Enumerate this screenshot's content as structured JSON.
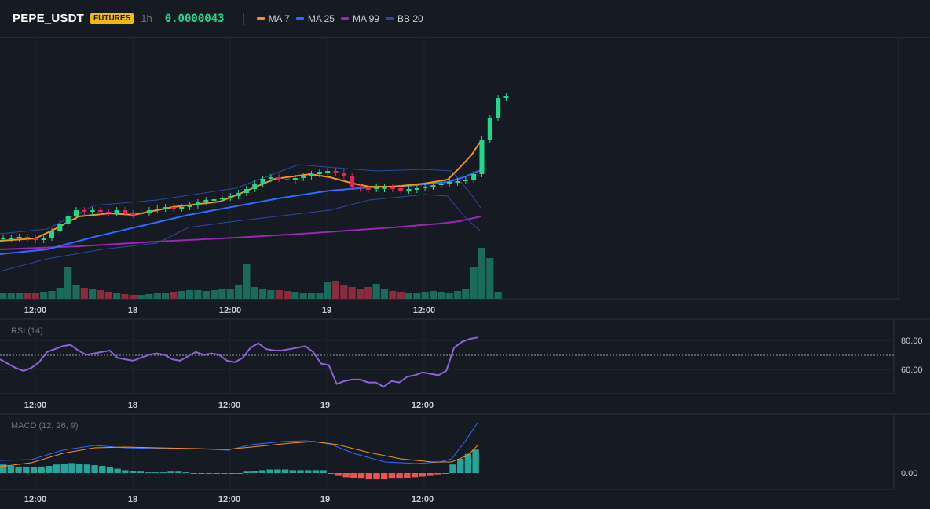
{
  "header": {
    "symbol": "PEPE_USDT",
    "badge": "FUTURES",
    "interval": "1h",
    "price": "0.0000043"
  },
  "legend": [
    {
      "label": "MA 7",
      "color": "#f7931a"
    },
    {
      "label": "MA 25",
      "color": "#2f6bff"
    },
    {
      "label": "MA 99",
      "color": "#9c27b0"
    },
    {
      "label": "BB 20",
      "color": "#2a4aa0"
    }
  ],
  "time_labels": [
    "12:00",
    "18",
    "12:00",
    "19",
    "12:00"
  ],
  "rsi": {
    "label": "RSI (14)",
    "ticks": [
      "80.00",
      "60.00"
    ],
    "values": [
      67,
      64,
      61,
      59,
      61,
      65,
      72,
      74,
      76,
      77,
      73,
      70,
      71,
      72,
      73,
      68,
      67,
      66,
      68,
      70,
      71,
      70,
      67,
      66,
      69,
      72,
      70,
      71,
      70,
      66,
      65,
      68,
      75,
      78,
      74,
      73,
      73,
      74,
      75,
      76,
      72,
      64,
      63,
      50,
      52,
      53,
      53,
      51,
      51,
      48,
      52,
      51,
      55,
      56,
      58,
      57,
      56,
      59,
      75,
      79,
      81,
      82
    ]
  },
  "macd": {
    "label": "MACD (12, 26, 9)",
    "ticks": [
      "0.00"
    ],
    "histogram": [
      12,
      10,
      9,
      9,
      8,
      9,
      10,
      12,
      13,
      14,
      13,
      12,
      11,
      10,
      8,
      6,
      4,
      3,
      2,
      1,
      1,
      1,
      2,
      2,
      1,
      0,
      -1,
      -1,
      -1,
      -1,
      -2,
      -2,
      2,
      3,
      4,
      5,
      5,
      5,
      4,
      4,
      4,
      4,
      4,
      -2,
      -4,
      -6,
      -7,
      -8,
      -9,
      -9,
      -9,
      -8,
      -8,
      -7,
      -6,
      -5,
      -4,
      -3,
      -2,
      12,
      20,
      27,
      33
    ]
  }
}
